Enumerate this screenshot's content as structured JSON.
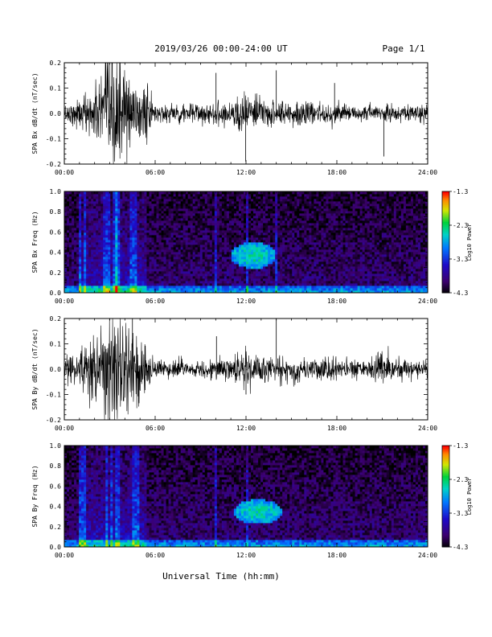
{
  "header": {
    "title": "2019/03/26  00:00-24:00 UT",
    "page": "Page 1/1"
  },
  "footer": {
    "xlabel": "Universal Time (hh:mm)"
  },
  "colors": {
    "trace": "#000000",
    "background": "#ffffff"
  },
  "chart_data": [
    {
      "type": "line",
      "ylabel": "SPA Bx dB/dt (nT/sec)",
      "xlim": [
        0,
        24
      ],
      "ylim": [
        -0.2,
        0.2
      ],
      "x_ticks": [
        "00:00",
        "06:00",
        "12:00",
        "18:00",
        "24:00"
      ],
      "y_ticks": [
        "0.2",
        "0.1",
        "0.0",
        "-0.1",
        "-0.2"
      ],
      "envelope": {
        "hours": [
          0,
          1,
          1.5,
          2,
          2.5,
          3,
          3.5,
          3.8,
          4.2,
          4.6,
          5,
          5.5,
          6,
          7,
          8,
          9,
          10,
          11,
          11.5,
          12,
          12.5,
          13,
          14,
          15,
          16,
          17,
          18,
          19,
          20,
          21,
          22,
          23,
          24
        ],
        "amplitude": [
          0.03,
          0.05,
          0.08,
          0.1,
          0.15,
          0.2,
          0.22,
          0.2,
          0.15,
          0.12,
          0.1,
          0.08,
          0.04,
          0.035,
          0.035,
          0.035,
          0.04,
          0.05,
          0.06,
          0.08,
          0.06,
          0.05,
          0.045,
          0.04,
          0.04,
          0.035,
          0.04,
          0.03,
          0.03,
          0.03,
          0.03,
          0.03,
          0.03
        ]
      },
      "spikes": [
        {
          "hour": 11.98,
          "value": -0.19
        },
        {
          "hour": 10.02,
          "value": 0.16
        },
        {
          "hour": 17.85,
          "value": 0.12
        },
        {
          "hour": 21.1,
          "value": -0.17
        },
        {
          "hour": 14.0,
          "value": 0.17
        }
      ]
    },
    {
      "type": "heatmap",
      "ylabel": "SPA Bx Freq (Hz)",
      "xlim": [
        0,
        24
      ],
      "ylim": [
        0,
        1.0
      ],
      "x_ticks": [
        "00:00",
        "06:00",
        "12:00",
        "18:00",
        "24:00"
      ],
      "y_ticks": [
        "1.0",
        "0.8",
        "0.6",
        "0.4",
        "0.2",
        "0.0"
      ],
      "colorbar": {
        "label": "Log10 Power",
        "ticks": [
          "-1.3",
          "-2.3",
          "-3.3",
          "-4.3"
        ],
        "range": [
          -4.3,
          -1.3
        ]
      },
      "features": {
        "blob": {
          "hour": 12.5,
          "freq": 0.37,
          "width_h": 1.5,
          "height_hz": 0.13,
          "level": -2.9
        },
        "vertical_streaks": [
          1.0,
          1.4,
          2.7,
          3.0,
          3.35,
          3.55,
          4.5,
          4.7,
          10.0,
          12.1,
          14.0
        ],
        "low_freq_band_level": -3.1
      }
    },
    {
      "type": "line",
      "ylabel": "SPA By dB/dt (nT/sec)",
      "xlim": [
        0,
        24
      ],
      "ylim": [
        -0.2,
        0.2
      ],
      "x_ticks": [
        "00:00",
        "06:00",
        "12:00",
        "18:00",
        "24:00"
      ],
      "y_ticks": [
        "0.2",
        "0.1",
        "0.0",
        "-0.1",
        "-0.2"
      ],
      "envelope": {
        "hours": [
          0,
          1,
          1.5,
          2,
          2.5,
          3,
          3.5,
          3.8,
          4.2,
          4.6,
          5,
          5.5,
          6,
          7,
          8,
          9,
          10,
          11,
          11.5,
          12,
          12.5,
          13,
          14,
          15,
          16,
          17,
          18,
          19,
          20,
          21,
          22,
          23,
          24
        ],
        "amplitude": [
          0.04,
          0.06,
          0.1,
          0.13,
          0.16,
          0.2,
          0.22,
          0.18,
          0.16,
          0.14,
          0.12,
          0.08,
          0.04,
          0.035,
          0.035,
          0.035,
          0.04,
          0.045,
          0.06,
          0.07,
          0.06,
          0.05,
          0.045,
          0.04,
          0.04,
          0.045,
          0.04,
          0.035,
          0.035,
          0.06,
          0.035,
          0.03,
          0.03
        ]
      },
      "spikes": [
        {
          "hour": 4.5,
          "value": 0.2
        },
        {
          "hour": 10.05,
          "value": 0.13
        },
        {
          "hour": 14.0,
          "value": 0.2
        },
        {
          "hour": 12.0,
          "value": -0.1
        }
      ]
    },
    {
      "type": "heatmap",
      "ylabel": "SPA By Freq (Hz)",
      "xlim": [
        0,
        24
      ],
      "ylim": [
        0,
        1.0
      ],
      "x_ticks": [
        "00:00",
        "06:00",
        "12:00",
        "18:00",
        "24:00"
      ],
      "y_ticks": [
        "1.0",
        "0.8",
        "0.6",
        "0.4",
        "0.2",
        "0.0"
      ],
      "colorbar": {
        "label": "Log10 Power",
        "ticks": [
          "-1.3",
          "-2.3",
          "-3.3",
          "-4.3"
        ],
        "range": [
          -4.3,
          -1.3
        ]
      },
      "features": {
        "blob": {
          "hour": 12.8,
          "freq": 0.35,
          "width_h": 1.6,
          "height_hz": 0.12,
          "level": -2.9
        },
        "vertical_streaks": [
          1.0,
          1.3,
          2.8,
          3.1,
          3.4,
          3.6,
          4.6,
          4.8,
          10.0,
          12.1
        ],
        "low_freq_band_level": -3.1
      }
    }
  ]
}
